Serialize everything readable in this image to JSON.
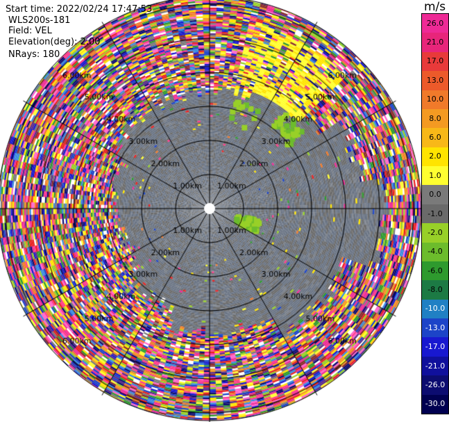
{
  "header": {
    "start_time": "Start time: 2022/02/24 17:47:53",
    "instrument": "WLS200s-181",
    "field": "Field: VEL",
    "elevation": "Elevation(deg): 2.00",
    "nrays": "NRays: 180"
  },
  "colorbar": {
    "unit": "m/s",
    "labels": [
      "26.0",
      "21.0",
      "17.0",
      "13.0",
      "10.0",
      "8.0",
      "6.0",
      "2.0",
      "1.0",
      "0.0",
      "-1.0",
      "-2.0",
      "-4.0",
      "-6.0",
      "-8.0",
      "-10.0",
      "-13.0",
      "-17.0",
      "-21.0",
      "-26.0",
      "-30.0"
    ],
    "colors": [
      "#ee2a96",
      "#e8257a",
      "#e83a3a",
      "#ec5a2a",
      "#f07a2a",
      "#f49a22",
      "#f8b818",
      "#ffe400",
      "#ffff30",
      "#7a7a7a",
      "#6a6a6a",
      "#98d028",
      "#6cbc2c",
      "#2e9a2e",
      "#1c7a44",
      "#2080c4",
      "#1c44c8",
      "#1818d0",
      "#10109c",
      "#0c0c70",
      "#000050"
    ]
  },
  "chart_data": {
    "type": "heatmap",
    "projection": "polar-ppi",
    "field": "VEL",
    "units": "m/s",
    "nrays": 180,
    "range_rings_km": [
      1,
      2,
      3,
      4,
      5,
      6
    ],
    "ring_labels": [
      "1.00km",
      "2.00km",
      "3.00km",
      "4.00km",
      "5.00km",
      "6.00km"
    ],
    "colorbar_range": [
      -30,
      26
    ],
    "radial_spokes_deg": [
      0,
      30,
      60,
      90,
      120,
      150,
      180,
      210,
      240,
      270,
      300,
      330
    ]
  }
}
